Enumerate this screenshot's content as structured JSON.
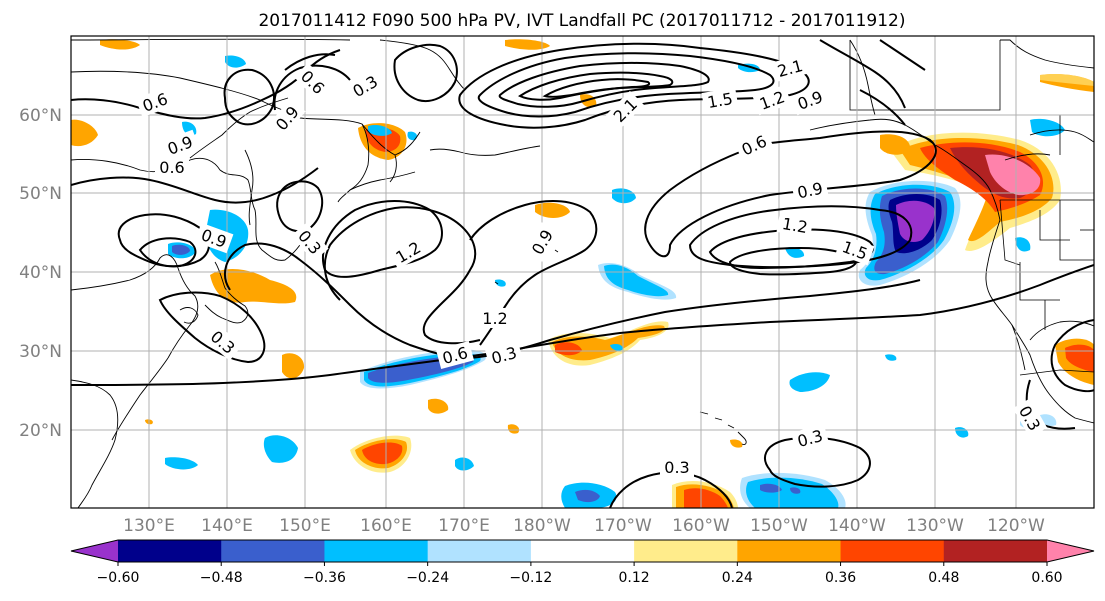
{
  "title": "2017011412 F090 500 hPa PV, IVT Landfall PC (2017011712 - 2017011912)",
  "map": {
    "lon_labels": [
      "130°E",
      "140°E",
      "150°E",
      "160°E",
      "170°E",
      "180°W",
      "170°W",
      "160°W",
      "150°W",
      "140°W",
      "130°W",
      "120°W"
    ],
    "lat_labels": [
      "20°N",
      "30°N",
      "40°N",
      "50°N",
      "60°N"
    ],
    "gridlines": true,
    "contour_labels": [
      "0.3",
      "0.6",
      "0.9",
      "1.2",
      "1.5",
      "2.1"
    ]
  },
  "colorbar": {
    "ticks": [
      "−0.60",
      "−0.48",
      "−0.36",
      "−0.24",
      "−0.12",
      "0.12",
      "0.24",
      "0.36",
      "0.48",
      "0.60"
    ],
    "colors": [
      "#9932cc",
      "#00008b",
      "#3a5fcd",
      "#00bfff",
      "#b0e2ff",
      "#ffffff",
      "#ffec8b",
      "#ffa500",
      "#ff4500",
      "#b22222",
      "#ff82ab"
    ]
  }
}
